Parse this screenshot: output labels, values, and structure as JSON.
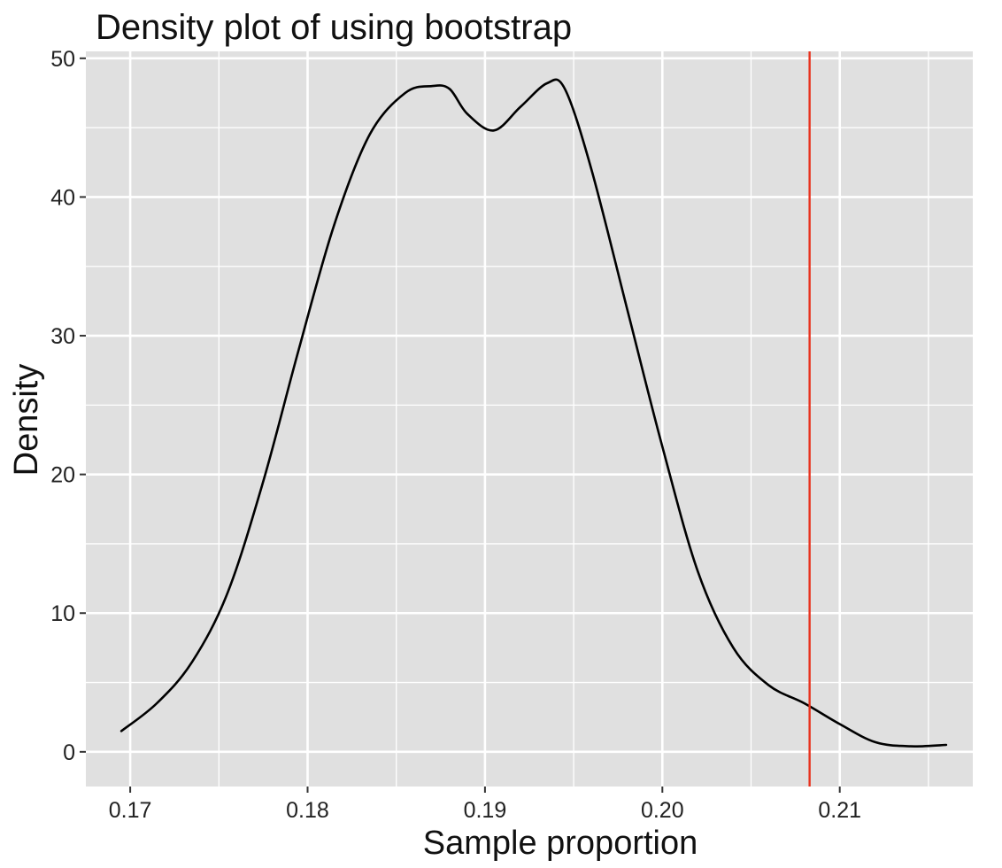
{
  "chart_data": {
    "type": "line",
    "title": "Density plot of using bootstrap",
    "xlabel": "Sample proportion",
    "ylabel": "Density",
    "xlim": [
      0.1675,
      0.2175
    ],
    "ylim": [
      -2.5,
      50.5
    ],
    "x_ticks": [
      0.17,
      0.18,
      0.19,
      0.2,
      0.21
    ],
    "x_tick_labels": [
      "0.17",
      "0.18",
      "0.19",
      "0.20",
      "0.21"
    ],
    "y_ticks": [
      0,
      10,
      20,
      30,
      40,
      50
    ],
    "y_tick_labels": [
      "0",
      "10",
      "20",
      "30",
      "40",
      "50"
    ],
    "grid": true,
    "background": "#e0e0e0",
    "grid_color": "#ffffff",
    "series": [
      {
        "color": "#000000",
        "x": [
          0.1695,
          0.1715,
          0.1735,
          0.1755,
          0.1775,
          0.1795,
          0.1815,
          0.1835,
          0.1855,
          0.187,
          0.188,
          0.189,
          0.1905,
          0.192,
          0.1935,
          0.1945,
          0.196,
          0.198,
          0.2,
          0.202,
          0.204,
          0.206,
          0.208,
          0.21,
          0.212,
          0.214,
          0.216
        ],
        "y": [
          1.5,
          3.5,
          6.5,
          11.5,
          19.5,
          29.0,
          38.0,
          44.5,
          47.5,
          48.0,
          47.8,
          46.0,
          44.8,
          46.5,
          48.2,
          47.8,
          42.0,
          32.0,
          22.0,
          13.0,
          7.5,
          4.8,
          3.5,
          2.0,
          0.7,
          0.4,
          0.5
        ]
      }
    ],
    "reference_line": {
      "x": 0.2083,
      "color": "#e8321e"
    }
  }
}
